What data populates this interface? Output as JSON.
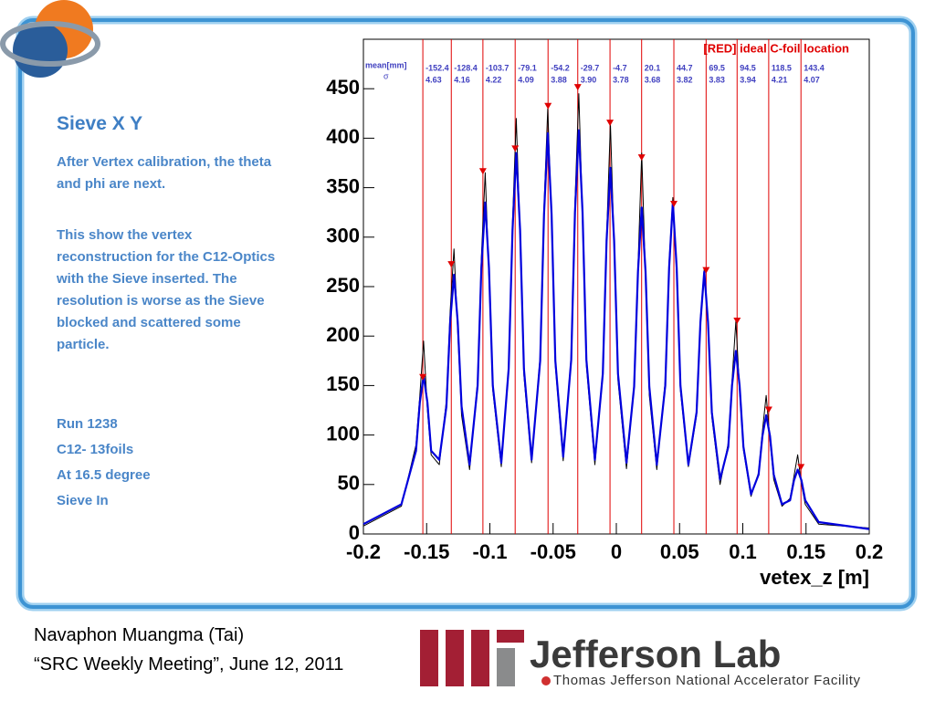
{
  "slide": {
    "title": "Sieve X Y",
    "paragraphs": [
      "After Vertex calibration, the theta and phi are next.",
      "This show the vertex reconstruction for the C12-Optics with the Sieve inserted.  The resolution is worse as the Sieve blocked and scattered some particle."
    ],
    "details": [
      "Run 1238",
      "C12- 13foils",
      "At 16.5 degree",
      "Sieve In"
    ]
  },
  "footer": {
    "author": "Navaphon Muangma (Tai)",
    "meeting": "“SRC Weekly Meeting”, June 12, 2011",
    "logo_text": "Jefferson Lab",
    "logo_subtitle": "Thomas Jefferson National Accelerator Facility"
  },
  "chart_data": {
    "type": "line",
    "xlabel": "vetex_z [m]",
    "xlim": [
      -0.2,
      0.2
    ],
    "xticks": [
      -0.2,
      -0.15,
      -0.1,
      -0.05,
      0,
      0.05,
      0.1,
      0.15,
      0.2
    ],
    "ylim": [
      0,
      500
    ],
    "yticks": [
      0,
      50,
      100,
      150,
      200,
      250,
      300,
      350,
      400,
      450
    ],
    "x": [
      -0.2,
      -0.17,
      -0.1584,
      -0.1554,
      -0.1524,
      -0.1494,
      -0.1464,
      -0.14,
      -0.1344,
      -0.1314,
      -0.1284,
      -0.1254,
      -0.1224,
      -0.116,
      -0.1097,
      -0.1067,
      -0.1037,
      -0.1007,
      -0.0977,
      -0.091,
      -0.0851,
      -0.0821,
      -0.0791,
      -0.0761,
      -0.0731,
      -0.067,
      -0.0602,
      -0.0572,
      -0.0542,
      -0.0512,
      -0.0482,
      -0.042,
      -0.0357,
      -0.0327,
      -0.0297,
      -0.0267,
      -0.0237,
      -0.017,
      -0.0107,
      -0.0077,
      -0.0047,
      -0.0017,
      0.0013,
      0.008,
      0.0141,
      0.0171,
      0.0201,
      0.0231,
      0.0261,
      0.032,
      0.0387,
      0.0417,
      0.0447,
      0.0477,
      0.0507,
      0.057,
      0.0635,
      0.0665,
      0.0695,
      0.0725,
      0.0755,
      0.082,
      0.0885,
      0.0915,
      0.0945,
      0.0975,
      0.1005,
      0.1065,
      0.1125,
      0.1155,
      0.1185,
      0.1215,
      0.1245,
      0.131,
      0.1374,
      0.1404,
      0.1434,
      0.1464,
      0.1494,
      0.16,
      0.2
    ],
    "series": [
      {
        "color": "#000000",
        "values": [
          8,
          28,
          90,
          140,
          195,
          125,
          80,
          70,
          135,
          225,
          288,
          205,
          120,
          65,
          155,
          280,
          365,
          260,
          145,
          68,
          170,
          315,
          420,
          300,
          160,
          72,
          180,
          330,
          430,
          315,
          170,
          74,
          180,
          335,
          445,
          320,
          170,
          70,
          165,
          300,
          415,
          290,
          155,
          66,
          150,
          270,
          385,
          258,
          140,
          65,
          155,
          275,
          340,
          262,
          145,
          68,
          120,
          218,
          268,
          210,
          118,
          50,
          92,
          155,
          215,
          145,
          85,
          38,
          62,
          104,
          140,
          95,
          55,
          28,
          36,
          58,
          80,
          50,
          30,
          10,
          6
        ]
      },
      {
        "color": "#0000dd",
        "values": [
          10,
          30,
          84,
          133,
          160,
          133,
          84,
          75,
          129,
          214,
          262,
          214,
          129,
          70,
          150,
          269,
          335,
          269,
          150,
          72,
          167,
          307,
          385,
          307,
          167,
          75,
          175,
          323,
          405,
          323,
          175,
          78,
          176,
          325,
          408,
          325,
          176,
          75,
          162,
          296,
          370,
          296,
          162,
          72,
          149,
          265,
          330,
          265,
          149,
          70,
          150,
          269,
          335,
          269,
          150,
          70,
          123,
          214,
          265,
          214,
          123,
          55,
          88,
          150,
          185,
          150,
          88,
          40,
          60,
          99,
          120,
          99,
          60,
          30,
          34,
          54,
          65,
          54,
          34,
          12,
          5
        ]
      }
    ],
    "foils": {
      "name": "[RED] ideal C-foil location",
      "color": "#e00000",
      "x": [
        -0.153,
        -0.1305,
        -0.1055,
        -0.08,
        -0.054,
        -0.0305,
        -0.005,
        0.02,
        0.0455,
        0.071,
        0.0955,
        0.1205,
        0.146
      ],
      "values": [
        158,
        272,
        366,
        389,
        432,
        451,
        415,
        380,
        333,
        266,
        215,
        125,
        67
      ]
    },
    "fit_labels": {
      "mean_header": "mean[mm]",
      "sigma_header": "σ",
      "mean": [
        "-152.4",
        "-128.4",
        "-103.7",
        "-79.1",
        "-54.2",
        "-29.7",
        "-4.7",
        "20.1",
        "44.7",
        "69.5",
        "94.5",
        "118.5",
        "143.4"
      ],
      "sigma": [
        "4.63",
        "4.16",
        "4.22",
        "4.09",
        "3.88",
        "3.90",
        "3.78",
        "3.68",
        "3.82",
        "3.83",
        "3.94",
        "4.21",
        "4.07"
      ]
    }
  }
}
